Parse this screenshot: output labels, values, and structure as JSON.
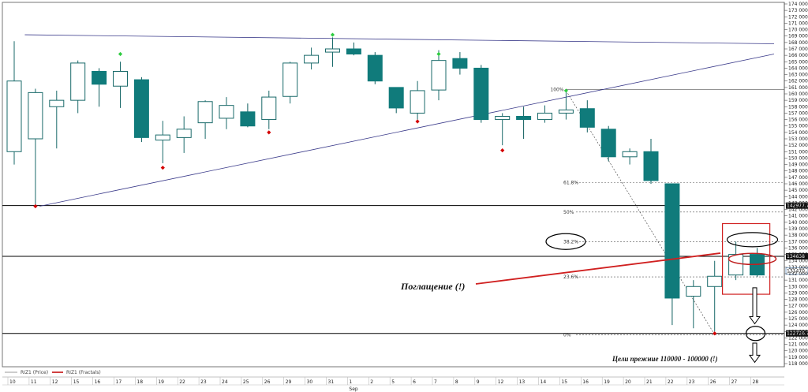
{
  "chart_data": {
    "type": "candlestick",
    "instrument": "RIZ1",
    "legend": [
      {
        "label": "RIZ1 (Price)",
        "color": "#9a9a9a"
      },
      {
        "label": "RIZ1 (Fractals)",
        "color": "#c00000"
      }
    ],
    "ylim": [
      118000,
      174000
    ],
    "y_ticks": [
      "118 000",
      "119 000",
      "120 000",
      "121 000",
      "122 000",
      "123 000",
      "124 000",
      "125 000",
      "126 000",
      "127 000",
      "128 000",
      "129 000",
      "130 000",
      "131 000",
      "132 000",
      "133 000",
      "134 000",
      "135 000",
      "136 000",
      "137 000",
      "138 000",
      "139 000",
      "140 000",
      "141 000",
      "142 000",
      "143 000",
      "144 000",
      "145 000",
      "146 000",
      "147 000",
      "148 000",
      "149 000",
      "150 000",
      "151 000",
      "152 000",
      "153 000",
      "154 000",
      "155 000",
      "156 000",
      "157 000",
      "158 000",
      "159 000",
      "160 000",
      "161 000",
      "162 000",
      "163 000",
      "164 000",
      "165 000",
      "166 000",
      "167 000",
      "168 000",
      "169 000",
      "170 000",
      "171 000",
      "172 000",
      "173 000",
      "174 000"
    ],
    "x_labels": [
      "10",
      "11",
      "12",
      "15",
      "16",
      "17",
      "18",
      "19",
      "22",
      "23",
      "24",
      "25",
      "26",
      "29",
      "30",
      "31",
      "1",
      "2",
      "5",
      "6",
      "7",
      "8",
      "9",
      "12",
      "13",
      "14",
      "15",
      "16",
      "19",
      "20",
      "21",
      "22",
      "23",
      "26",
      "27",
      "28"
    ],
    "month_label": "Sep",
    "candles": [
      {
        "o": 151.0,
        "h": 168.2,
        "l": 149.0,
        "c": 162.0
      },
      {
        "o": 153.0,
        "h": 160.8,
        "l": 142.5,
        "c": 160.2
      },
      {
        "o": 158.0,
        "h": 160.5,
        "l": 151.5,
        "c": 159.0
      },
      {
        "o": 159.0,
        "h": 165.2,
        "l": 157.0,
        "c": 164.8
      },
      {
        "o": 163.5,
        "h": 164.0,
        "l": 158.0,
        "c": 161.5
      },
      {
        "o": 161.2,
        "h": 165.0,
        "l": 157.8,
        "c": 163.5
      },
      {
        "o": 162.2,
        "h": 162.6,
        "l": 152.5,
        "c": 153.2
      },
      {
        "o": 152.8,
        "h": 155.8,
        "l": 149.2,
        "c": 153.6
      },
      {
        "o": 153.2,
        "h": 156.5,
        "l": 150.8,
        "c": 154.5
      },
      {
        "o": 155.5,
        "h": 159.0,
        "l": 153.0,
        "c": 158.8
      },
      {
        "o": 156.2,
        "h": 159.5,
        "l": 154.5,
        "c": 158.2
      },
      {
        "o": 157.2,
        "h": 158.5,
        "l": 154.8,
        "c": 155.0
      },
      {
        "o": 156.0,
        "h": 160.5,
        "l": 154.5,
        "c": 159.5
      },
      {
        "o": 159.6,
        "h": 165.0,
        "l": 158.5,
        "c": 164.8
      },
      {
        "o": 164.8,
        "h": 167.2,
        "l": 163.8,
        "c": 166.0
      },
      {
        "o": 166.5,
        "h": 168.8,
        "l": 164.2,
        "c": 167.0
      },
      {
        "o": 167.0,
        "h": 168.0,
        "l": 166.0,
        "c": 166.2
      },
      {
        "o": 166.0,
        "h": 166.5,
        "l": 161.5,
        "c": 162.0
      },
      {
        "o": 161.0,
        "h": 161.0,
        "l": 157.0,
        "c": 157.8
      },
      {
        "o": 157.0,
        "h": 162.0,
        "l": 156.0,
        "c": 160.5
      },
      {
        "o": 160.6,
        "h": 166.8,
        "l": 159.0,
        "c": 165.2
      },
      {
        "o": 165.5,
        "h": 166.5,
        "l": 163.0,
        "c": 164.0
      },
      {
        "o": 164.0,
        "h": 164.5,
        "l": 155.5,
        "c": 156.0
      },
      {
        "o": 156.0,
        "h": 157.0,
        "l": 152.0,
        "c": 156.5
      },
      {
        "o": 156.5,
        "h": 158.0,
        "l": 153.0,
        "c": 156.0
      },
      {
        "o": 156.0,
        "h": 158.2,
        "l": 155.5,
        "c": 157.0
      },
      {
        "o": 157.0,
        "h": 160.5,
        "l": 156.0,
        "c": 157.5
      },
      {
        "o": 157.7,
        "h": 159.0,
        "l": 154.0,
        "c": 154.8
      },
      {
        "o": 154.5,
        "h": 155.0,
        "l": 149.5,
        "c": 150.2
      },
      {
        "o": 150.2,
        "h": 151.5,
        "l": 149.0,
        "c": 151.0
      },
      {
        "o": 151.0,
        "h": 153.0,
        "l": 146.0,
        "c": 146.5
      },
      {
        "o": 146.0,
        "h": 146.0,
        "l": 124.0,
        "c": 128.2
      },
      {
        "o": 128.5,
        "h": 131.0,
        "l": 123.5,
        "c": 130.0
      },
      {
        "o": 130.0,
        "h": 134.0,
        "l": 123.0,
        "c": 131.6
      },
      {
        "o": 131.8,
        "h": 137.0,
        "l": 131.0,
        "c": 135.0
      },
      {
        "o": 135.0,
        "h": 136.0,
        "l": 131.5,
        "c": 131.8
      }
    ],
    "fractals_up": [
      {
        "i": 5,
        "v": 166.2
      },
      {
        "i": 15,
        "v": 169.2
      },
      {
        "i": 20,
        "v": 166.2
      },
      {
        "i": 26,
        "v": 160.5
      }
    ],
    "fractals_down": [
      {
        "i": 1,
        "v": 142.5
      },
      {
        "i": 7,
        "v": 148.5
      },
      {
        "i": 12,
        "v": 154.0
      },
      {
        "i": 19,
        "v": 155.7
      },
      {
        "i": 23,
        "v": 151.2
      },
      {
        "i": 33,
        "v": 122.7
      }
    ],
    "trendlines": [
      {
        "x1": 0.5,
        "y1": 169.2,
        "x2": 35.8,
        "y2": 167.8,
        "color": "#3a3a8a"
      },
      {
        "x1": 1.2,
        "y1": 142.5,
        "x2": 35.8,
        "y2": 166.2,
        "color": "#3a3a8a"
      }
    ],
    "fib_drop": {
      "x1": 26,
      "y1": 160.5,
      "x2": 33,
      "y2": 122.5
    },
    "fib_levels": [
      {
        "label": "100%",
        "v": 160.7
      },
      {
        "label": "61.8%",
        "v": 146.2
      },
      {
        "label": "50%",
        "v": 141.6
      },
      {
        "label": "38.2%",
        "v": 137.0
      },
      {
        "label": "23.6%",
        "v": 131.5
      },
      {
        "label": "0%",
        "v": 122.5
      }
    ],
    "hlines": [
      {
        "v": 142.6,
        "tag": "142977.7"
      },
      {
        "v": 134.7,
        "tag": "134638"
      },
      {
        "v": 122.7,
        "tag": "122726.7"
      }
    ],
    "small_tag": {
      "v": 132.4,
      "tag": "131470"
    },
    "annotations": {
      "engulf": "Поглащение (!)",
      "targets": "Цели прежние 110000 - 100000 (!)"
    }
  }
}
